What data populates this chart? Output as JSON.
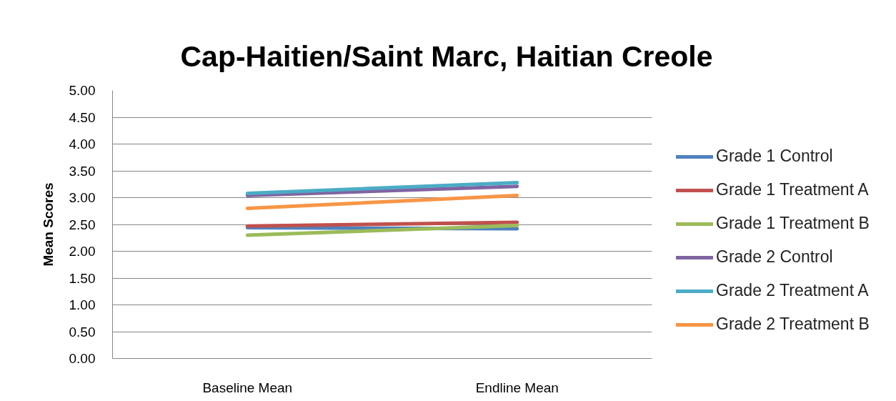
{
  "chart_data": {
    "type": "line",
    "title": "Cap-Haitien/Saint Marc, Haitian Creole",
    "ylabel": "Mean Scores",
    "categories": [
      "Baseline Mean",
      "Endline Mean"
    ],
    "series": [
      {
        "name": "Grade 1 Control",
        "color": "#4f81bd",
        "values": [
          2.44,
          2.42
        ]
      },
      {
        "name": "Grade 1 Treatment A",
        "color": "#c0504d",
        "values": [
          2.47,
          2.54
        ]
      },
      {
        "name": "Grade 1 Treatment B",
        "color": "#9bbb59",
        "values": [
          2.3,
          2.48
        ]
      },
      {
        "name": "Grade 2 Control",
        "color": "#8064a2",
        "values": [
          3.04,
          3.21
        ]
      },
      {
        "name": "Grade 2 Treatment A",
        "color": "#4bacc6",
        "values": [
          3.08,
          3.28
        ]
      },
      {
        "name": "Grade 2 Treatment B",
        "color": "#f79646",
        "values": [
          2.8,
          3.04
        ]
      }
    ],
    "ylim": [
      0,
      5
    ],
    "yticks": [
      {
        "value": 0,
        "label": "0.00"
      },
      {
        "value": 0.5,
        "label": "0.50"
      },
      {
        "value": 1,
        "label": "1.00"
      },
      {
        "value": 1.5,
        "label": "1.50"
      },
      {
        "value": 2,
        "label": "2.00"
      },
      {
        "value": 2.5,
        "label": "2.50"
      },
      {
        "value": 3,
        "label": "3.00"
      },
      {
        "value": 3.5,
        "label": "3.50"
      },
      {
        "value": 4,
        "label": "4.00"
      },
      {
        "value": 4.5,
        "label": "4.50"
      },
      {
        "value": 5,
        "label": "5.00"
      }
    ],
    "grid": "y",
    "legend": "right",
    "line_style": "solid"
  }
}
